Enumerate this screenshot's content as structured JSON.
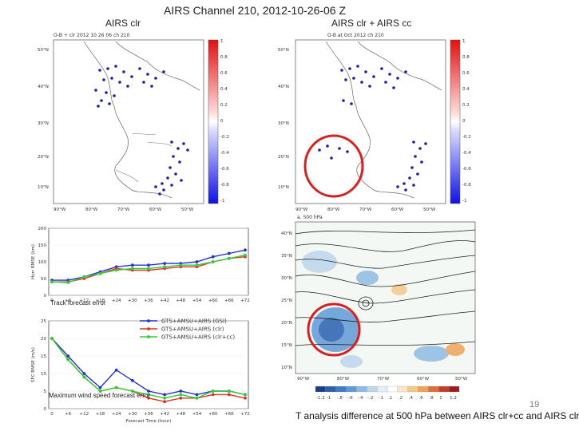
{
  "slide": {
    "title": "AIRS Channel 210, 2012-10-26-06 Z",
    "left_label": "AIRS clr",
    "right_label": "AIRS clr + AIRS cc",
    "page_number": "19",
    "caption": "T analysis difference at 500 hPa between AIRS clr+cc and AIRS clr"
  },
  "left_map": {
    "header": "O-B + clr 2012 10 26 06 ch 210",
    "lat_labels": [
      "50°N",
      "40°N",
      "30°N",
      "20°N",
      "10°N"
    ],
    "lon_labels": [
      "90°W",
      "80°W",
      "70°W",
      "60°W",
      "50°W"
    ],
    "colorbar_labels": [
      "1",
      "0.8",
      "0.6",
      "0.4",
      "0.2",
      "0",
      "-0.2",
      "-0.4",
      "-0.6",
      "-0.8",
      "-1"
    ]
  },
  "right_map": {
    "header": "O-B at Oct 2012 ch 210",
    "lat_labels": [
      "50°N",
      "40°N",
      "30°N",
      "20°N",
      "10°N"
    ],
    "lon_labels": [
      "90°W",
      "80°W",
      "70°W",
      "60°W",
      "50°W"
    ],
    "colorbar_labels": [
      "1",
      "0.8",
      "0.6",
      "0.4",
      "0.2",
      "0",
      "-0.2",
      "-0.4",
      "-0.6",
      "-0.8",
      "-1"
    ]
  },
  "analysis_map": {
    "header": "a. 500 hPa",
    "lat_labels": [
      "40°N",
      "35°N",
      "30°N",
      "25°N",
      "20°N",
      "15°N",
      "10°N"
    ],
    "lon_labels": [
      "90°W",
      "80°W",
      "70°W",
      "60°W",
      "50°W"
    ],
    "colorbar_labels": [
      "-1.2",
      "-1",
      "-.8",
      "-.6",
      "-.4",
      "-.2",
      "-.1",
      ".1",
      ".2",
      ".4",
      ".6",
      ".8",
      "1",
      "1.2"
    ],
    "colorbar_colors": [
      "#1a3f8a",
      "#2a5fb0",
      "#3d7cc9",
      "#5f9ad6",
      "#8fbbe3",
      "#bcd6ee",
      "#e4eef8",
      "#ffffff",
      "#fbe7c6",
      "#f6c98a",
      "#eea35a",
      "#dd6d3a",
      "#c63c2a",
      "#9c1d1d"
    ],
    "accent": "#d62020"
  },
  "charts": [
    {
      "type": "line",
      "title": "Track forecast error",
      "ylabel": "Hurr RMSE (km)",
      "xlabel": "",
      "categories": [
        "0",
        "+6",
        "+12",
        "+18",
        "+24",
        "+30",
        "+36",
        "+42",
        "+48",
        "+54",
        "+60",
        "+66",
        "+72"
      ],
      "ylim": [
        0,
        200
      ],
      "yticks": [
        "200",
        "150",
        "100",
        "50",
        "0"
      ],
      "series": [
        {
          "name": "GTS+AMSU+AIRS (GSI)",
          "color": "#2233cc",
          "values": [
            45,
            45,
            55,
            70,
            85,
            90,
            90,
            95,
            95,
            100,
            115,
            125,
            135
          ]
        },
        {
          "name": "GTS+AMSU+AIRS (clr)",
          "color": "#dd3322",
          "values": [
            40,
            40,
            50,
            65,
            80,
            75,
            75,
            80,
            85,
            85,
            100,
            110,
            115
          ]
        },
        {
          "name": "GTS+AMSU+AIRS (clr+cc)",
          "color": "#33cc33",
          "values": [
            40,
            38,
            55,
            65,
            75,
            80,
            80,
            85,
            90,
            90,
            100,
            110,
            120
          ]
        }
      ]
    },
    {
      "type": "line",
      "title": "Maximum wind speed forecast error",
      "ylabel": "SFC RMSE (m/s)",
      "xlabel": "Forecast Time (hour)",
      "categories": [
        "0",
        "+6",
        "+12",
        "+18",
        "+24",
        "+30",
        "+36",
        "+42",
        "+48",
        "+54",
        "+60",
        "+66",
        "+72"
      ],
      "ylim": [
        0,
        25
      ],
      "yticks": [
        "25",
        "20",
        "15",
        "10",
        "5",
        "0"
      ],
      "series": [
        {
          "name": "GTS+AMSU+AIRS (GSI)",
          "color": "#2233cc",
          "values": [
            20,
            15,
            10,
            6,
            11,
            8,
            5,
            4,
            5,
            4,
            5,
            5,
            4
          ]
        },
        {
          "name": "GTS+AMSU+AIRS (clr)",
          "color": "#dd3322",
          "values": [
            20,
            14,
            9,
            5,
            6,
            5,
            3,
            2,
            3,
            3,
            4,
            4,
            3
          ]
        },
        {
          "name": "GTS+AMSU+AIRS (clr+cc)",
          "color": "#33cc33",
          "values": [
            20,
            14,
            9,
            5,
            6,
            5,
            4,
            3,
            4,
            3,
            5,
            5,
            4
          ]
        }
      ]
    }
  ]
}
